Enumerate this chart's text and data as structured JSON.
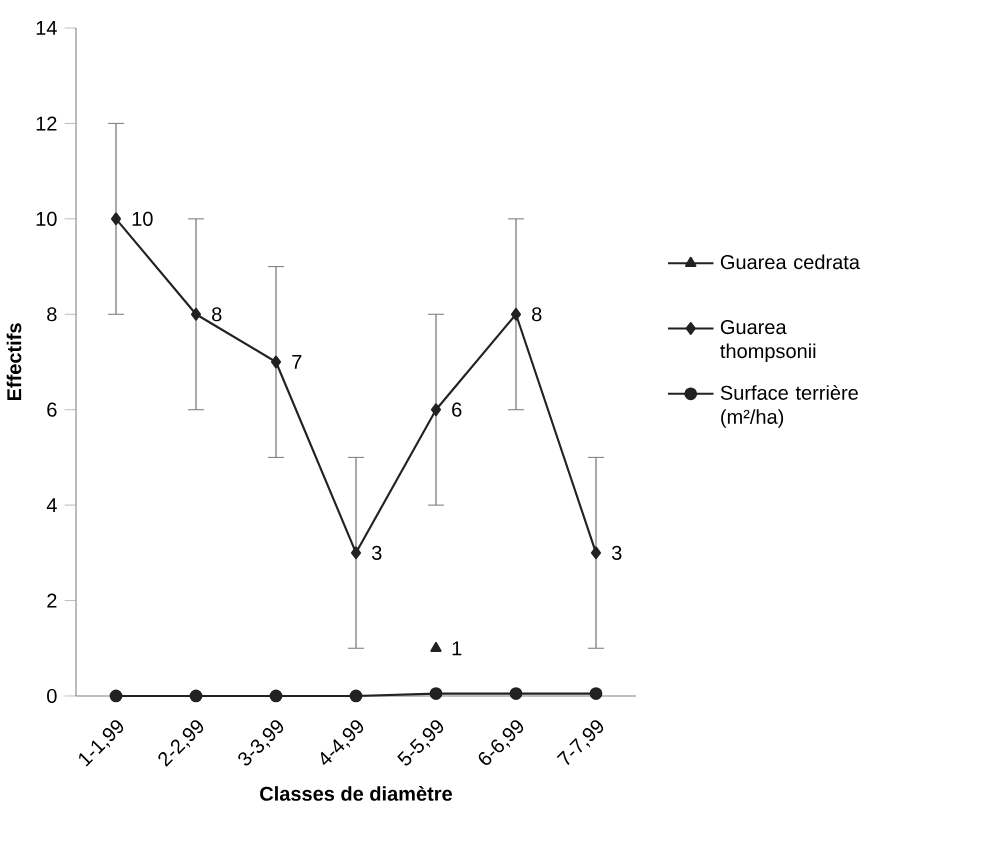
{
  "chart_data": {
    "type": "line",
    "xlabel": "Classes de diamètre",
    "ylabel": "Effectifs",
    "categories": [
      "1-1,99",
      "2-2,99",
      "3-3,99",
      "4-4,99",
      "5-5,99",
      "6-6,99",
      "7-7,99"
    ],
    "series": [
      {
        "name": "Guarea cedrata",
        "color": "#222222",
        "marker": "triangle",
        "values": [
          null,
          null,
          null,
          null,
          1,
          null,
          null
        ],
        "value_labels": [
          null,
          null,
          null,
          null,
          "1",
          null,
          null
        ]
      },
      {
        "name": "Guarea thompsonii",
        "color": "#222222",
        "marker": "diamond",
        "values": [
          10,
          8,
          7,
          3,
          6,
          8,
          3
        ],
        "errors": [
          2,
          2,
          2,
          2,
          2,
          2,
          2
        ],
        "value_labels": [
          "10",
          "8",
          "7",
          "3",
          "6",
          "8",
          "3"
        ]
      },
      {
        "name": "Surface terrière (m²/ha)",
        "color": "#222222",
        "marker": "circle",
        "values": [
          0,
          0,
          0,
          0,
          0.05,
          0.05,
          0.05
        ]
      }
    ],
    "ylim": [
      0,
      14
    ],
    "yticks": [
      0,
      2,
      4,
      6,
      8,
      10,
      12,
      14
    ],
    "legend": "right"
  }
}
